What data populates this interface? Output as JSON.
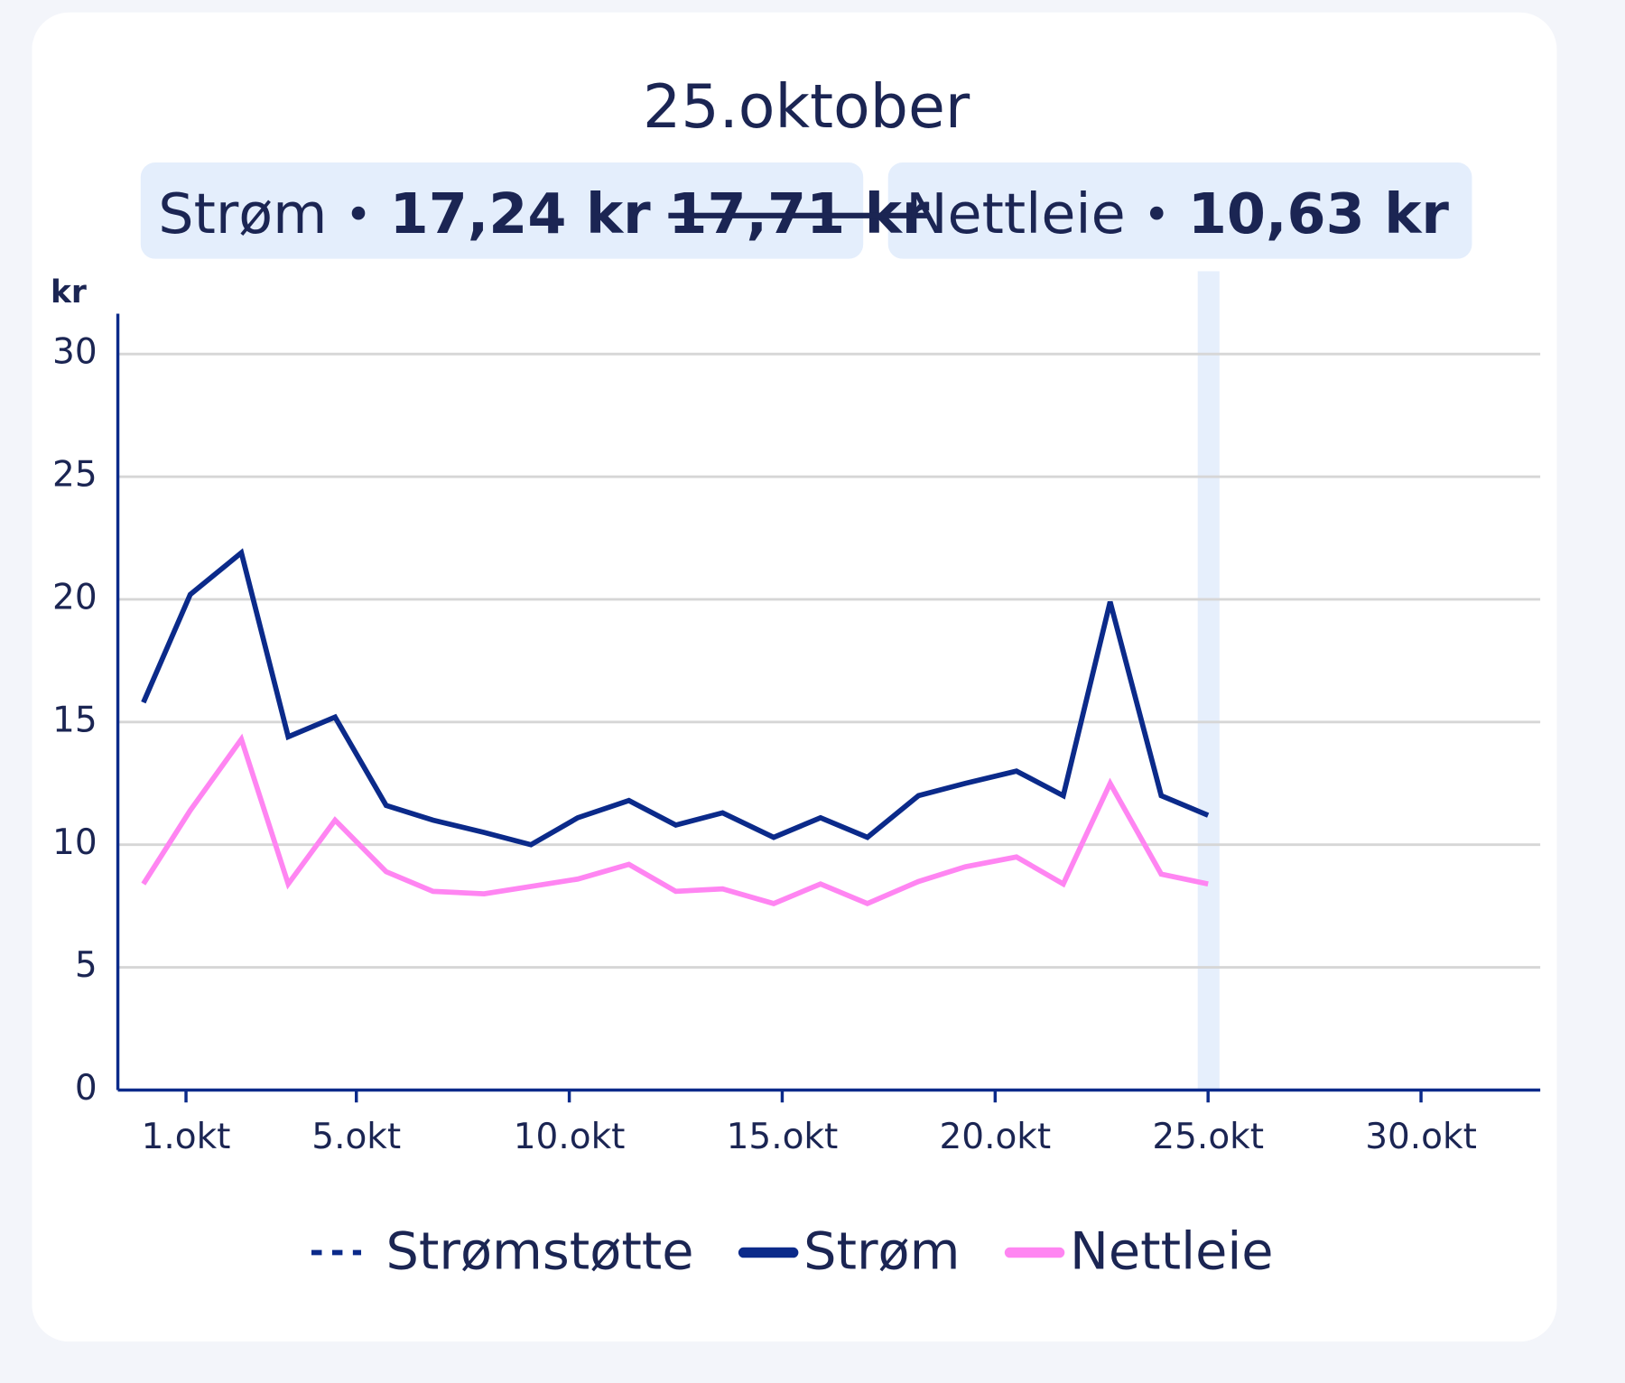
{
  "chart_data": {
    "type": "line",
    "title": "25.oktober",
    "summary": [
      {
        "name": "Strøm",
        "separator": "•",
        "value_label": "17,24 kr",
        "original_label": "17,71 kr"
      },
      {
        "name": "Nettleie",
        "separator": "•",
        "value_label": "10,63 kr"
      }
    ],
    "y_label": "kr",
    "highlight_x": 25,
    "x": [
      0,
      1.1,
      2.3,
      3.4,
      4.5,
      5.7,
      6.8,
      8.0,
      9.1,
      10.2,
      11.4,
      12.5,
      13.6,
      14.8,
      15.9,
      17.0,
      18.2,
      19.3,
      20.5,
      21.6,
      22.7,
      23.9,
      25.0
    ],
    "series": [
      {
        "name": "Strømstøtte",
        "color": "#0b2a8a",
        "dashed": true,
        "values": [
          null,
          null,
          null,
          null,
          null,
          null,
          null,
          null,
          null,
          null,
          null,
          null,
          null,
          null,
          null,
          null,
          null,
          null,
          null,
          null,
          null,
          null,
          null
        ]
      },
      {
        "name": "Strøm",
        "color": "#0b2a8a",
        "dashed": false,
        "values": [
          15.8,
          20.2,
          21.9,
          14.4,
          15.2,
          11.6,
          11.0,
          10.5,
          10.0,
          11.1,
          11.8,
          10.8,
          11.3,
          10.3,
          11.1,
          10.3,
          12.0,
          12.5,
          13.0,
          12.0,
          19.9,
          12.0,
          11.2
        ]
      },
      {
        "name": "Nettleie",
        "color": "#ff85f2",
        "dashed": false,
        "values": [
          8.4,
          11.4,
          14.3,
          8.4,
          11.0,
          8.9,
          8.1,
          8.0,
          8.3,
          8.6,
          9.2,
          8.1,
          8.2,
          7.6,
          8.4,
          7.6,
          8.5,
          9.1,
          9.5,
          8.4,
          12.5,
          8.8,
          8.4
        ]
      }
    ],
    "xlim": [
      -0.6,
      32.8
    ],
    "xticks": [
      {
        "value": 1,
        "label": "1.okt"
      },
      {
        "value": 5,
        "label": "5.okt"
      },
      {
        "value": 10,
        "label": "10.okt"
      },
      {
        "value": 15,
        "label": "15.okt"
      },
      {
        "value": 20,
        "label": "20.okt"
      },
      {
        "value": 25,
        "label": "25.okt"
      },
      {
        "value": 30,
        "label": "30.okt"
      }
    ],
    "ylim": [
      0,
      30
    ],
    "yticks": [
      0,
      5,
      10,
      15,
      20,
      25,
      30
    ],
    "grid": true,
    "legend": "bottom"
  }
}
